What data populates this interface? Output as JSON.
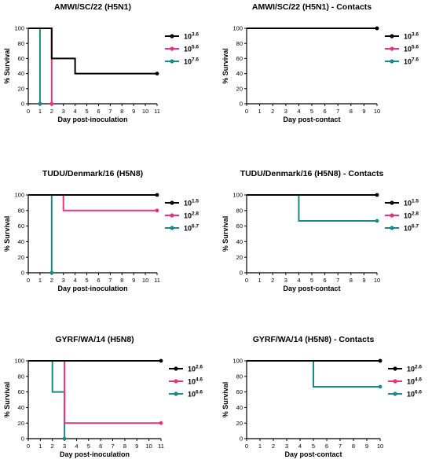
{
  "colors": {
    "low": "#000000",
    "mid": "#e8347a",
    "high": "#1a8a87"
  },
  "chart_data": [
    {
      "type": "line",
      "step": true,
      "title": "AMWI/SC/22 (H5N1)",
      "xlabel": "Day post-inoculation",
      "ylabel": "% Survival",
      "xlim": [
        0,
        11
      ],
      "ylim": [
        0,
        100
      ],
      "xticks": [
        "0",
        "1",
        "2",
        "3",
        "4",
        "5",
        "6",
        "7",
        "8",
        "9",
        "10",
        "11"
      ],
      "yticks": [
        "0",
        "20",
        "40",
        "60",
        "80",
        "100"
      ],
      "series": [
        {
          "name": "10",
          "exp": "3.6",
          "color": "#000000",
          "points": [
            [
              0,
              100
            ],
            [
              2,
              100
            ],
            [
              2,
              60
            ],
            [
              4,
              60
            ],
            [
              4,
              40
            ],
            [
              11,
              40
            ]
          ]
        },
        {
          "name": "10",
          "exp": "5.6",
          "color": "#e8347a",
          "points": [
            [
              0,
              100
            ],
            [
              2,
              100
            ],
            [
              2,
              0
            ]
          ]
        },
        {
          "name": "10",
          "exp": "7.6",
          "color": "#1a8a87",
          "points": [
            [
              0,
              100
            ],
            [
              1,
              100
            ],
            [
              1,
              0
            ]
          ]
        }
      ]
    },
    {
      "type": "line",
      "step": true,
      "title": "AMWI/SC/22 (H5N1) - Contacts",
      "xlabel": "Day post-contact",
      "ylabel": "% Survival",
      "xlim": [
        0,
        10
      ],
      "ylim": [
        0,
        100
      ],
      "xticks": [
        "0",
        "1",
        "2",
        "3",
        "4",
        "5",
        "6",
        "7",
        "8",
        "9",
        "10"
      ],
      "yticks": [
        "0",
        "20",
        "40",
        "60",
        "80",
        "100"
      ],
      "series": [
        {
          "name": "10",
          "exp": "3.6",
          "color": "#000000",
          "points": [
            [
              0,
              100
            ],
            [
              10,
              100
            ]
          ]
        },
        {
          "name": "10",
          "exp": "5.6",
          "color": "#e8347a",
          "points": [
            [
              0,
              100
            ],
            [
              10,
              100
            ]
          ]
        },
        {
          "name": "10",
          "exp": "7.6",
          "color": "#1a8a87",
          "points": [
            [
              0,
              100
            ],
            [
              10,
              100
            ]
          ]
        }
      ]
    },
    {
      "type": "line",
      "step": true,
      "title": "TUDU/Denmark/16 (H5N8)",
      "xlabel": "Day post-inoculation",
      "ylabel": "% Survival",
      "xlim": [
        0,
        11
      ],
      "ylim": [
        0,
        100
      ],
      "xticks": [
        "0",
        "1",
        "2",
        "3",
        "4",
        "5",
        "6",
        "7",
        "8",
        "9",
        "10",
        "11"
      ],
      "yticks": [
        "0",
        "20",
        "40",
        "60",
        "80",
        "100"
      ],
      "series": [
        {
          "name": "10",
          "exp": "1.5",
          "color": "#000000",
          "points": [
            [
              0,
              100
            ],
            [
              11,
              100
            ]
          ]
        },
        {
          "name": "10",
          "exp": "2.8",
          "color": "#e8347a",
          "points": [
            [
              0,
              100
            ],
            [
              3,
              100
            ],
            [
              3,
              80
            ],
            [
              11,
              80
            ]
          ]
        },
        {
          "name": "10",
          "exp": "6.7",
          "color": "#1a8a87",
          "points": [
            [
              0,
              100
            ],
            [
              2,
              100
            ],
            [
              2,
              0
            ]
          ]
        }
      ]
    },
    {
      "type": "line",
      "step": true,
      "title": "TUDU/Denmark/16 (H5N8) - Contacts",
      "xlabel": "Day post-contact",
      "ylabel": "% Survival",
      "xlim": [
        0,
        10
      ],
      "ylim": [
        0,
        100
      ],
      "xticks": [
        "0",
        "1",
        "2",
        "3",
        "4",
        "5",
        "6",
        "7",
        "8",
        "9",
        "10"
      ],
      "yticks": [
        "0",
        "20",
        "40",
        "60",
        "80",
        "100"
      ],
      "series": [
        {
          "name": "10",
          "exp": "1.5",
          "color": "#000000",
          "points": [
            [
              0,
              100
            ],
            [
              10,
              100
            ]
          ]
        },
        {
          "name": "10",
          "exp": "2.8",
          "color": "#e8347a",
          "points": [
            [
              0,
              100
            ],
            [
              10,
              100
            ]
          ]
        },
        {
          "name": "10",
          "exp": "6.7",
          "color": "#1a8a87",
          "points": [
            [
              0,
              100
            ],
            [
              4,
              100
            ],
            [
              4,
              66.7
            ],
            [
              10,
              66.7
            ]
          ]
        }
      ]
    },
    {
      "type": "line",
      "step": true,
      "title": "GYRF/WA/14 (H5N8)",
      "xlabel": "Day post-inoculation",
      "ylabel": "% Survival",
      "xlim": [
        0,
        11
      ],
      "ylim": [
        0,
        100
      ],
      "xticks": [
        "0",
        "1",
        "2",
        "3",
        "4",
        "5",
        "6",
        "7",
        "8",
        "9",
        "10",
        "11"
      ],
      "yticks": [
        "0",
        "20",
        "40",
        "60",
        "80",
        "100"
      ],
      "series": [
        {
          "name": "10",
          "exp": "2.6",
          "color": "#000000",
          "points": [
            [
              0,
              100
            ],
            [
              11,
              100
            ]
          ]
        },
        {
          "name": "10",
          "exp": "4.6",
          "color": "#e8347a",
          "points": [
            [
              0,
              100
            ],
            [
              3,
              100
            ],
            [
              3,
              20
            ],
            [
              11,
              20
            ]
          ]
        },
        {
          "name": "10",
          "exp": "6.6",
          "color": "#1a8a87",
          "points": [
            [
              0,
              100
            ],
            [
              2,
              100
            ],
            [
              2,
              60
            ],
            [
              3,
              60
            ],
            [
              3,
              0
            ]
          ]
        }
      ]
    },
    {
      "type": "line",
      "step": true,
      "title": "GYRF/WA/14 (H5N8) - Contacts",
      "xlabel": "Day post-contact",
      "ylabel": "% Survival",
      "xlim": [
        0,
        10
      ],
      "ylim": [
        0,
        100
      ],
      "xticks": [
        "0",
        "1",
        "2",
        "3",
        "4",
        "5",
        "6",
        "7",
        "8",
        "9",
        "10"
      ],
      "yticks": [
        "0",
        "20",
        "40",
        "60",
        "80",
        "100"
      ],
      "series": [
        {
          "name": "10",
          "exp": "2.6",
          "color": "#000000",
          "points": [
            [
              0,
              100
            ],
            [
              10,
              100
            ]
          ]
        },
        {
          "name": "10",
          "exp": "4.6",
          "color": "#e8347a",
          "points": [
            [
              0,
              100
            ],
            [
              10,
              100
            ]
          ]
        },
        {
          "name": "10",
          "exp": "6.6",
          "color": "#1a8a87",
          "points": [
            [
              0,
              100
            ],
            [
              5,
              100
            ],
            [
              5,
              66.7
            ],
            [
              10,
              66.7
            ]
          ]
        }
      ]
    }
  ]
}
